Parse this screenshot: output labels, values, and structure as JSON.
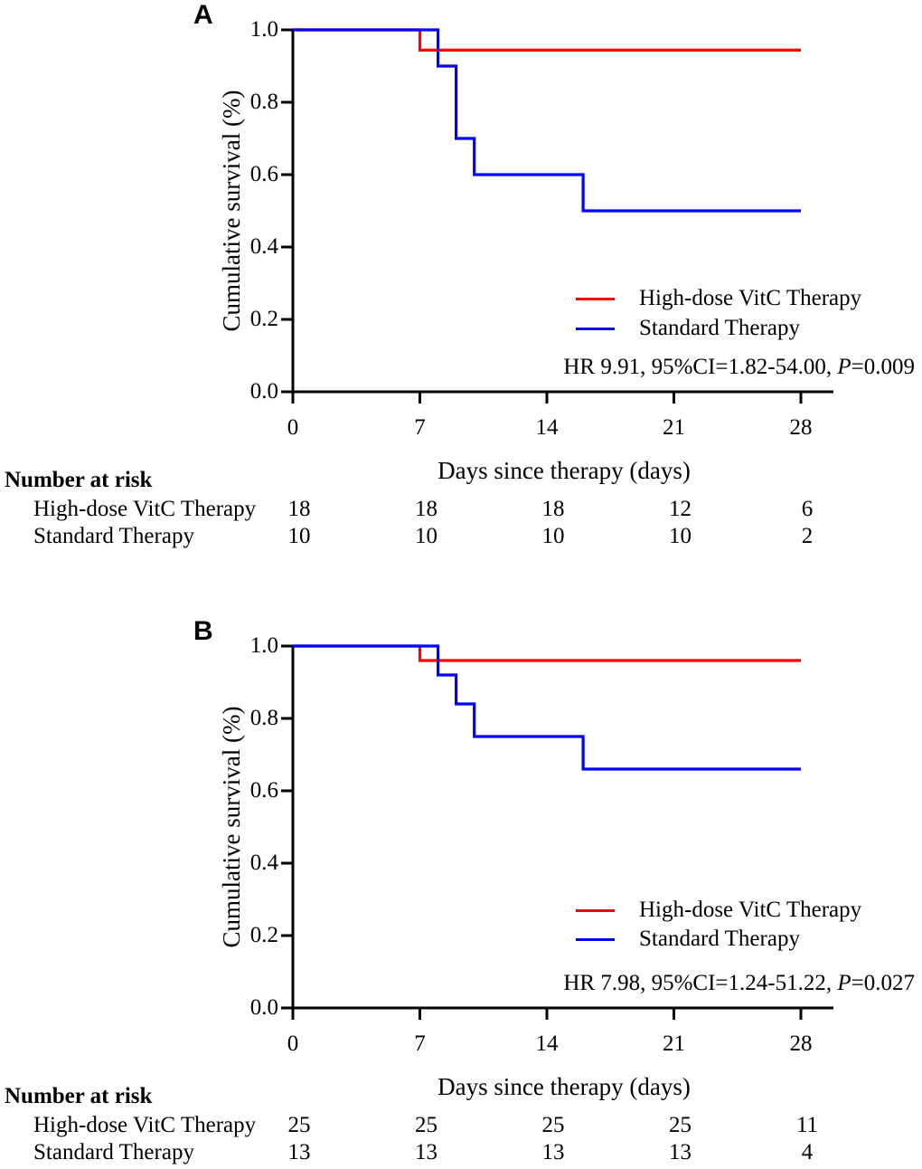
{
  "figure": {
    "background": "#ffffff",
    "axis_color": "#000000",
    "text_color": "#000000"
  },
  "chart_data": [
    {
      "type": "line",
      "subtype": "kaplan-meier-step",
      "panel": "A",
      "xlabel": "Days since therapy (days)",
      "ylabel": "Cumulative survival (%)",
      "xlim": [
        0,
        28
      ],
      "ylim": [
        0.0,
        1.0
      ],
      "xticks": [
        0,
        7,
        14,
        21,
        28
      ],
      "ytick_labels": [
        "0.0",
        "0.2",
        "0.4",
        "0.6",
        "0.8",
        "1.0"
      ],
      "grid": false,
      "legend_position": "lower right inside plot",
      "series": [
        {
          "name": "High-dose VitC Therapy",
          "color": "#ff0000",
          "points": [
            [
              0,
              1.0
            ],
            [
              7,
              1.0
            ],
            [
              7,
              0.944
            ],
            [
              28,
              0.944
            ]
          ]
        },
        {
          "name": "Standard Therapy",
          "color": "#0000ff",
          "points": [
            [
              0,
              1.0
            ],
            [
              8,
              1.0
            ],
            [
              8,
              0.9
            ],
            [
              9,
              0.9
            ],
            [
              9,
              0.7
            ],
            [
              10,
              0.7
            ],
            [
              10,
              0.6
            ],
            [
              16,
              0.6
            ],
            [
              16,
              0.5
            ],
            [
              28,
              0.5
            ]
          ]
        }
      ],
      "legend": [
        "High-dose VitC Therapy",
        "Standard Therapy"
      ],
      "stats": {
        "prefix": "HR 9.91, 95%CI=1.82-54.00, ",
        "p_label": "P",
        "p_rest": "=0.009"
      },
      "number_at_risk": {
        "header": "Number at risk",
        "timepoints": [
          0,
          7,
          14,
          21,
          28
        ],
        "rows": [
          {
            "label": "High-dose VitC Therapy",
            "values": [
              "18",
              "18",
              "18",
              "12",
              "6"
            ]
          },
          {
            "label": "Standard Therapy",
            "values": [
              "10",
              "10",
              "10",
              "10",
              "2"
            ]
          }
        ]
      }
    },
    {
      "type": "line",
      "subtype": "kaplan-meier-step",
      "panel": "B",
      "xlabel": "Days since therapy (days)",
      "ylabel": "Cumulative survival (%)",
      "xlim": [
        0,
        28
      ],
      "ylim": [
        0.0,
        1.0
      ],
      "xticks": [
        0,
        7,
        14,
        21,
        28
      ],
      "ytick_labels": [
        "0.0",
        "0.2",
        "0.4",
        "0.6",
        "0.8",
        "1.0"
      ],
      "grid": false,
      "legend_position": "lower right inside plot",
      "series": [
        {
          "name": "High-dose VitC Therapy",
          "color": "#ff0000",
          "points": [
            [
              0,
              1.0
            ],
            [
              7,
              1.0
            ],
            [
              7,
              0.96
            ],
            [
              28,
              0.96
            ]
          ]
        },
        {
          "name": "Standard Therapy",
          "color": "#0000ff",
          "points": [
            [
              0,
              1.0
            ],
            [
              8,
              1.0
            ],
            [
              8,
              0.92
            ],
            [
              9,
              0.92
            ],
            [
              9,
              0.84
            ],
            [
              10,
              0.84
            ],
            [
              10,
              0.75
            ],
            [
              16,
              0.75
            ],
            [
              16,
              0.66
            ],
            [
              28,
              0.66
            ]
          ]
        }
      ],
      "legend": [
        "High-dose VitC Therapy",
        "Standard Therapy"
      ],
      "stats": {
        "prefix": "HR 7.98, 95%CI=1.24-51.22, ",
        "p_label": "P",
        "p_rest": "=0.027"
      },
      "number_at_risk": {
        "header": "Number at risk",
        "timepoints": [
          0,
          7,
          14,
          21,
          28
        ],
        "rows": [
          {
            "label": "High-dose VitC Therapy",
            "values": [
              "25",
              "25",
              "25",
              "25",
              "11"
            ]
          },
          {
            "label": "Standard Therapy",
            "values": [
              "13",
              "13",
              "13",
              "13",
              "4"
            ]
          }
        ]
      }
    }
  ]
}
